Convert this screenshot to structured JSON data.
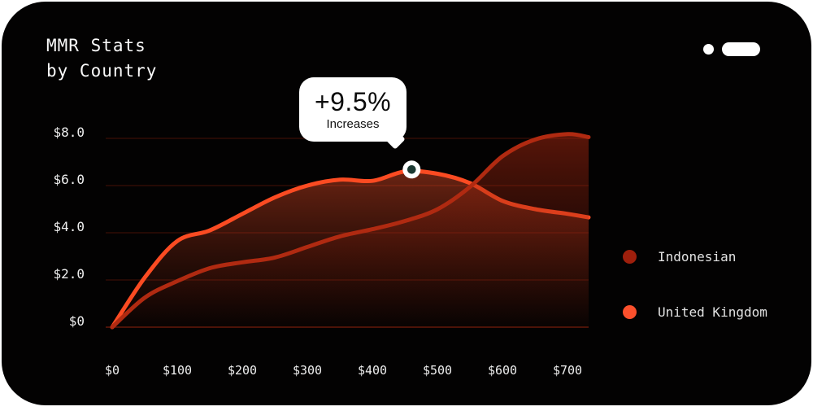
{
  "header": {
    "title_line1": "MMR Stats",
    "title_line2": "by Country"
  },
  "window_controls": {
    "dot_icon": "dot-indicator",
    "pill_icon": "pill-indicator",
    "color": "#ffffff"
  },
  "tooltip": {
    "value": "+9.5%",
    "label": "Increases"
  },
  "legend": [
    {
      "label": "Indonesian",
      "color": "#9e1f0c"
    },
    {
      "label": "United Kingdom",
      "color": "#fb502c"
    }
  ],
  "style": {
    "page_background": "#ffffff",
    "panel_background": "#030202",
    "title_color": "#fafafa",
    "axis_label_color": "#efefef",
    "legend_label_color": "#e2e2e2",
    "gridline_color": "#3a0e07",
    "baseline_color": "#791d0c",
    "tooltip_background": "#ffffff",
    "tooltip_text_color": "#0b0b0b"
  },
  "chart_data": {
    "type": "area",
    "title": "MMR Stats by Country",
    "xlabel": "",
    "ylabel": "",
    "xlim": [
      0,
      732
    ],
    "ylim": [
      0,
      8
    ],
    "grid": true,
    "legend_position": "right",
    "xticks": {
      "values": [
        0,
        100,
        200,
        300,
        400,
        500,
        600,
        700
      ],
      "labels": [
        "$0",
        "$100",
        "$200",
        "$300",
        "$400",
        "$500",
        "$600",
        "$700"
      ]
    },
    "yticks": {
      "values": [
        0,
        2,
        4,
        6,
        8
      ],
      "labels": [
        "$0",
        "$2.0",
        "$4.0",
        "$6.0",
        "$8.0"
      ]
    },
    "x": [
      0,
      50,
      100,
      150,
      200,
      250,
      300,
      350,
      400,
      450,
      500,
      550,
      600,
      650,
      700,
      732
    ],
    "series": [
      {
        "name": "United Kingdom",
        "line_color": "#fb4b22",
        "fill_top": "rgba(250,82,42,0.42)",
        "fill_bottom": "rgba(160,45,18,0.02)",
        "values": [
          0,
          2.1,
          3.65,
          4.1,
          4.8,
          5.5,
          6.0,
          6.25,
          6.2,
          6.6,
          6.5,
          6.1,
          5.35,
          5.0,
          4.8,
          4.65
        ]
      },
      {
        "name": "Indonesian",
        "line_color": "#b02a11",
        "fill_top": "rgba(172,40,16,0.50)",
        "fill_bottom": "rgba(110,25,10,0.02)",
        "values": [
          0,
          1.25,
          1.95,
          2.5,
          2.75,
          2.95,
          3.4,
          3.85,
          4.15,
          4.5,
          5.0,
          5.95,
          7.25,
          7.95,
          8.18,
          8.05
        ]
      }
    ],
    "marker": {
      "series": "United Kingdom",
      "x": 460,
      "value": 6.68,
      "label": "+9.5% Increases",
      "ring_color": "#ffffff",
      "dot_color": "#1c3a33"
    }
  }
}
